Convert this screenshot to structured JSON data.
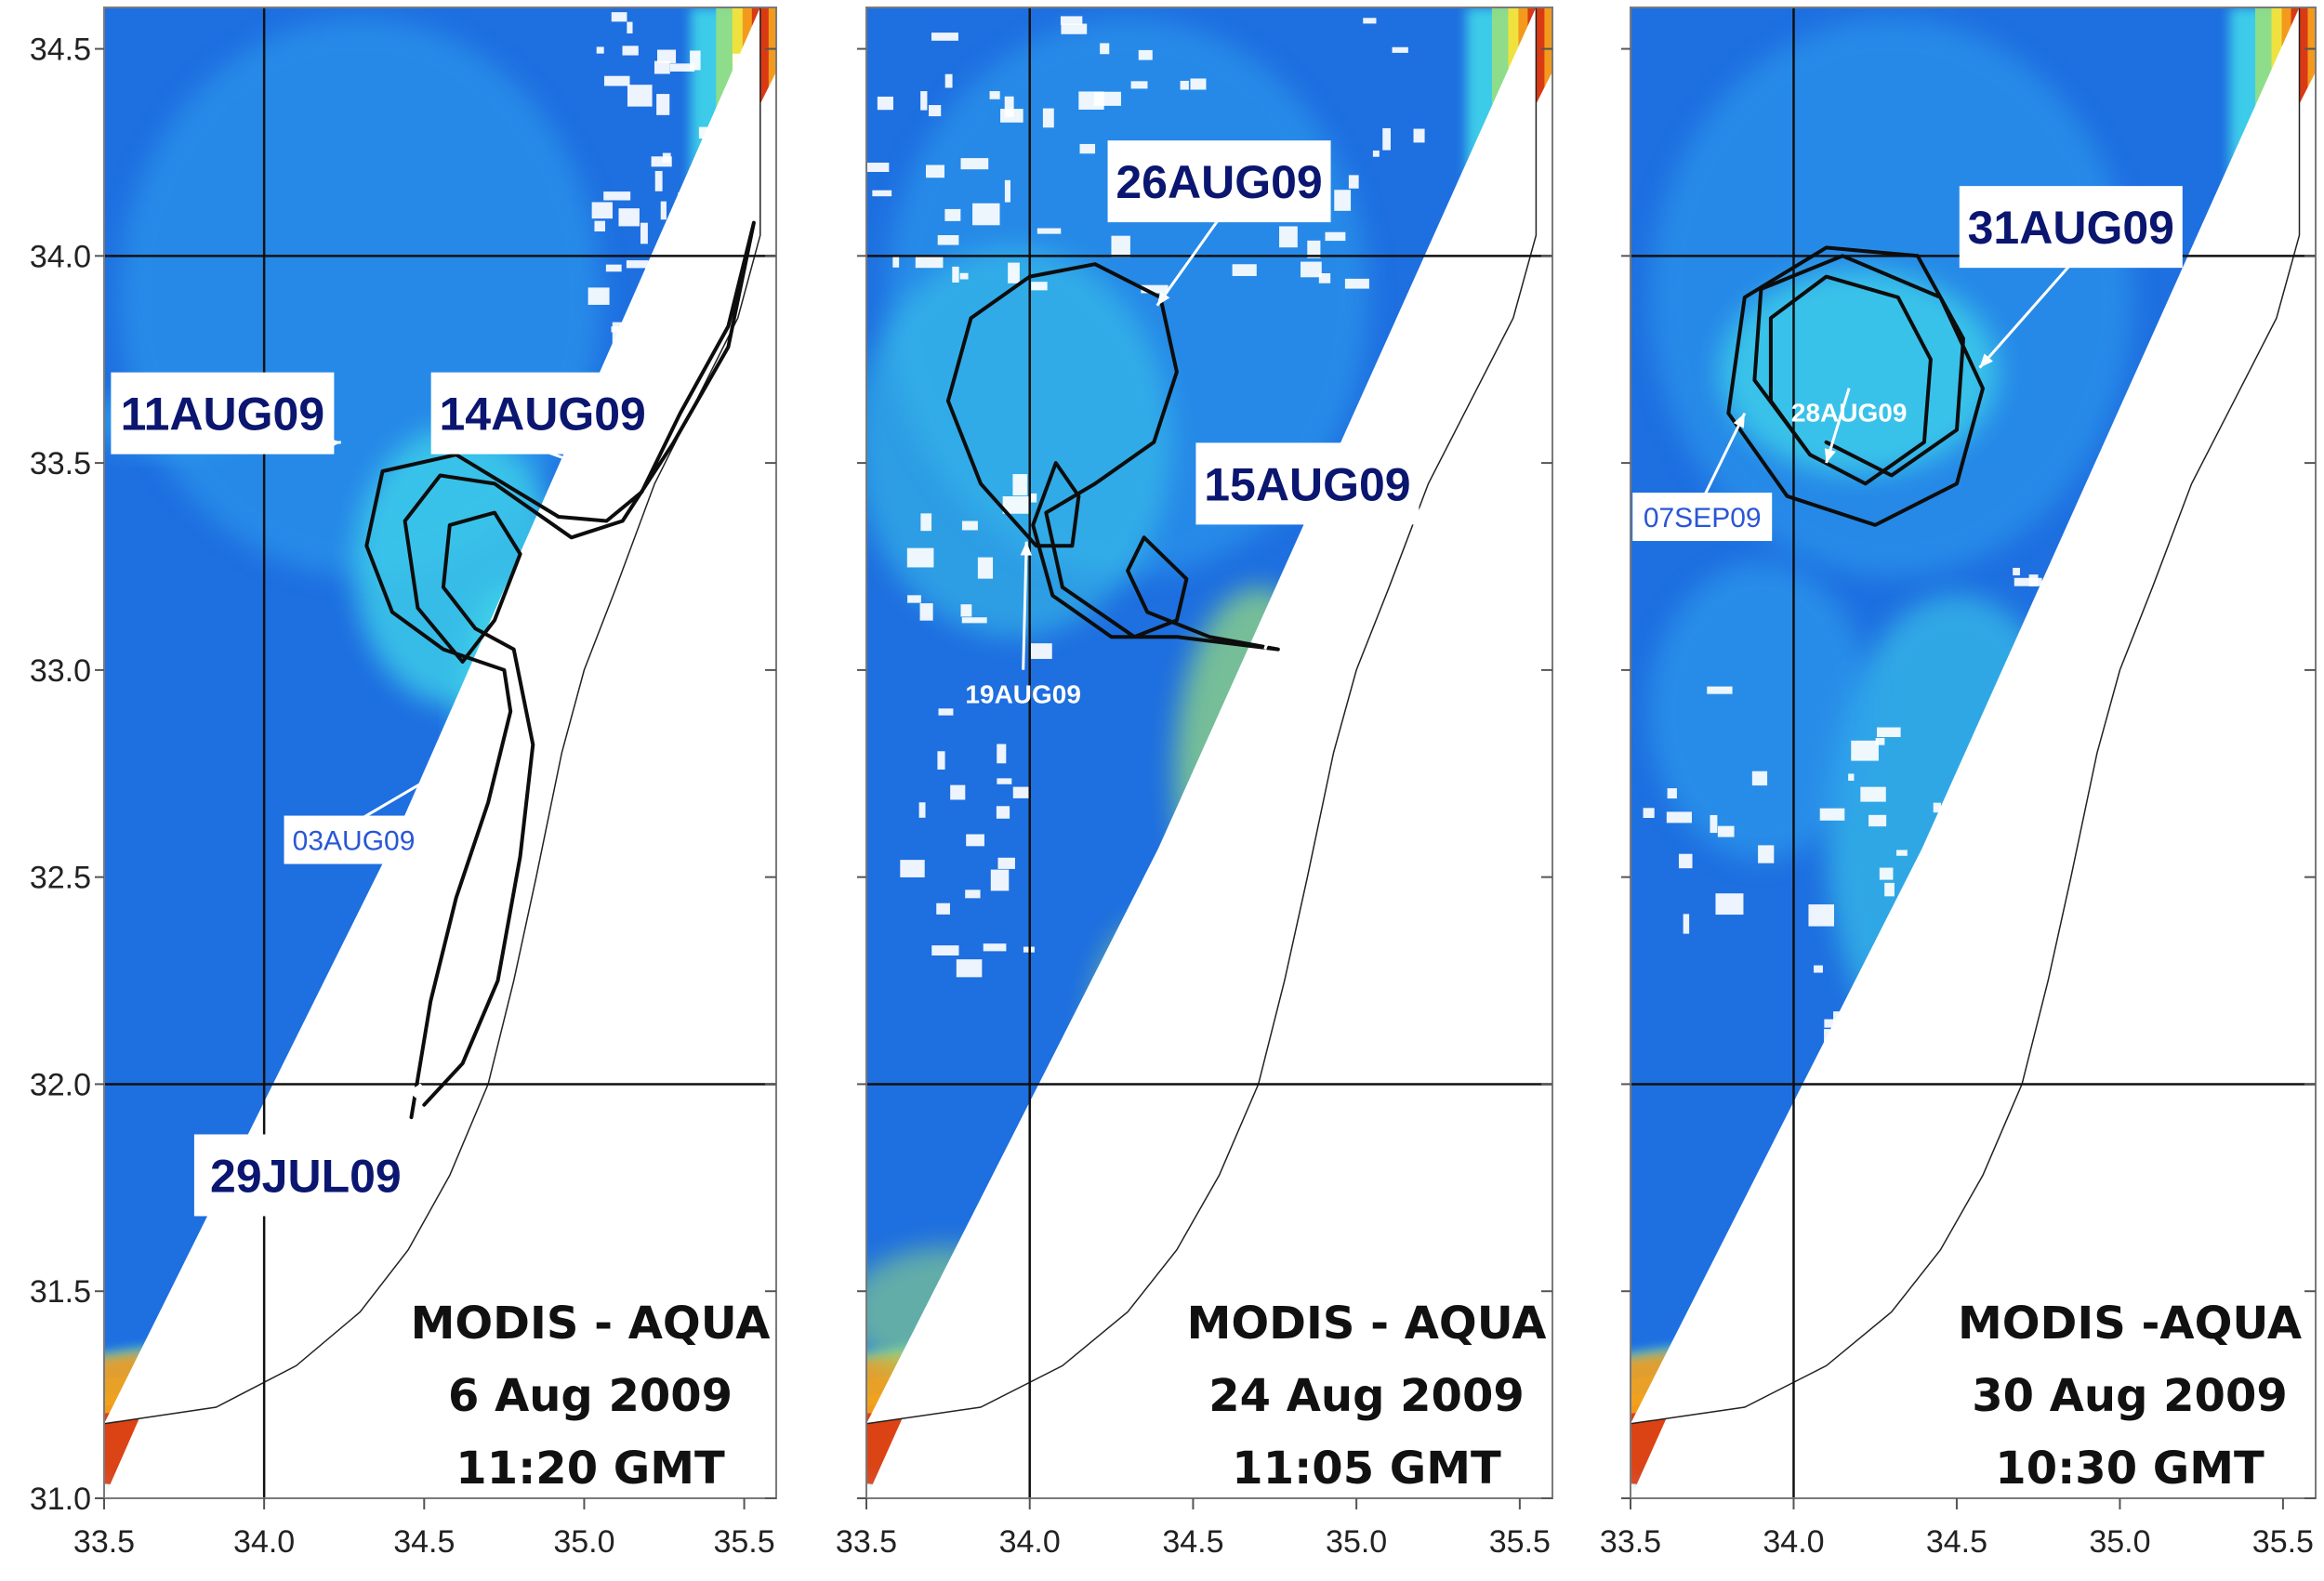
{
  "axes": {
    "x_ticks": [
      "33.5",
      "34.0",
      "34.5",
      "35.0",
      "35.5"
    ],
    "y_ticks": [
      "34.5",
      "34.0",
      "33.5",
      "33.0",
      "32.5",
      "32.0",
      "31.5",
      "31.0"
    ],
    "xlim": [
      33.5,
      35.6
    ],
    "ylim": [
      31.0,
      34.6
    ],
    "grid_lon": 34.0,
    "grid_lats": [
      34.0,
      32.0
    ]
  },
  "colors": {
    "ocean": "#1e6fe0",
    "ocean_light": "#2fa0ee",
    "plume_cyan": "#3fd6ea",
    "plume_green": "#9be07a",
    "coast_yellow": "#f4e13a",
    "coast_orange": "#f39a1d",
    "coast_red": "#d93a14",
    "label_text": "#0b1670",
    "small_label_blue": "#2a56d6"
  },
  "panels": [
    {
      "id": "p1",
      "caption": [
        "MODIS - AQUA",
        "6 Aug 2009",
        "11:20 GMT"
      ],
      "labels": [
        {
          "text": "11AUG09",
          "style": "big",
          "lon": 33.87,
          "lat": 33.62,
          "arrow_to": [
            34.24,
            33.55
          ]
        },
        {
          "text": "14AUG09",
          "style": "big",
          "lon": 34.87,
          "lat": 33.62,
          "arrow_to": [
            35.16,
            33.45
          ]
        },
        {
          "text": "03AUG09",
          "style": "small-blue",
          "lon": 34.28,
          "lat": 32.59,
          "arrow_to": [
            34.72,
            32.83
          ]
        },
        {
          "text": "29JUL09",
          "style": "big",
          "lon": 34.13,
          "lat": 31.78,
          "arrow_to": [
            34.49,
            32.0
          ]
        }
      ],
      "track": [
        [
          34.46,
          31.92
        ],
        [
          34.52,
          32.2
        ],
        [
          34.6,
          32.45
        ],
        [
          34.7,
          32.68
        ],
        [
          34.77,
          32.9
        ],
        [
          34.75,
          33.0
        ],
        [
          34.56,
          33.05
        ],
        [
          34.4,
          33.14
        ],
        [
          34.32,
          33.3
        ],
        [
          34.37,
          33.48
        ],
        [
          34.6,
          33.52
        ],
        [
          34.92,
          33.37
        ],
        [
          35.07,
          33.36
        ],
        [
          35.18,
          33.43
        ],
        [
          35.3,
          33.62
        ],
        [
          35.45,
          33.83
        ],
        [
          35.53,
          34.08
        ],
        [
          35.45,
          33.78
        ],
        [
          35.28,
          33.55
        ],
        [
          35.12,
          33.36
        ],
        [
          34.96,
          33.32
        ],
        [
          34.72,
          33.45
        ],
        [
          34.55,
          33.47
        ],
        [
          34.44,
          33.36
        ],
        [
          34.48,
          33.15
        ],
        [
          34.62,
          33.02
        ],
        [
          34.72,
          33.12
        ],
        [
          34.8,
          33.28
        ],
        [
          34.72,
          33.38
        ],
        [
          34.58,
          33.35
        ],
        [
          34.56,
          33.2
        ],
        [
          34.66,
          33.1
        ],
        [
          34.78,
          33.05
        ],
        [
          34.84,
          32.82
        ],
        [
          34.8,
          32.55
        ],
        [
          34.73,
          32.25
        ],
        [
          34.62,
          32.05
        ],
        [
          34.5,
          31.95
        ]
      ]
    },
    {
      "id": "p2",
      "caption": [
        "MODIS - AQUA",
        "24 Aug 2009",
        "11:05 GMT"
      ],
      "labels": [
        {
          "text": "26AUG09",
          "style": "big",
          "lon": 34.58,
          "lat": 34.18,
          "arrow_to": [
            34.39,
            33.88
          ]
        },
        {
          "text": "15AUG09",
          "style": "big",
          "lon": 34.85,
          "lat": 33.45,
          "arrow_to": [
            34.72,
            33.05
          ]
        },
        {
          "text": "19AUG09",
          "style": "small-white",
          "lon": 33.98,
          "lat": 32.96,
          "arrow_to": [
            33.99,
            33.31
          ]
        }
      ],
      "track": [
        [
          34.76,
          33.05
        ],
        [
          34.45,
          33.08
        ],
        [
          34.25,
          33.08
        ],
        [
          34.07,
          33.18
        ],
        [
          34.01,
          33.35
        ],
        [
          34.08,
          33.5
        ],
        [
          34.15,
          33.42
        ],
        [
          34.13,
          33.3
        ],
        [
          34.02,
          33.3
        ],
        [
          33.85,
          33.45
        ],
        [
          33.75,
          33.65
        ],
        [
          33.82,
          33.85
        ],
        [
          34.0,
          33.95
        ],
        [
          34.2,
          33.98
        ],
        [
          34.4,
          33.9
        ],
        [
          34.45,
          33.72
        ],
        [
          34.38,
          33.55
        ],
        [
          34.2,
          33.45
        ],
        [
          34.05,
          33.38
        ],
        [
          34.1,
          33.2
        ],
        [
          34.32,
          33.08
        ],
        [
          34.45,
          33.12
        ],
        [
          34.48,
          33.22
        ],
        [
          34.35,
          33.32
        ],
        [
          34.3,
          33.24
        ],
        [
          34.36,
          33.14
        ],
        [
          34.55,
          33.08
        ],
        [
          34.76,
          33.05
        ]
      ]
    },
    {
      "id": "p3",
      "caption": [
        "MODIS -AQUA",
        "30 Aug 2009",
        "10:30 GMT"
      ],
      "labels": [
        {
          "text": "31AUG09",
          "style": "big",
          "lon": 34.85,
          "lat": 34.07,
          "arrow_to": [
            34.57,
            33.73
          ]
        },
        {
          "text": "28AUG09",
          "style": "small-white",
          "lon": 34.17,
          "lat": 33.64,
          "arrow_to": [
            34.1,
            33.5
          ]
        },
        {
          "text": "07SEP09",
          "style": "small-blue",
          "lon": 33.72,
          "lat": 33.37,
          "arrow_to": [
            33.85,
            33.62
          ]
        }
      ],
      "track": [
        [
          34.05,
          33.52
        ],
        [
          33.93,
          33.65
        ],
        [
          33.93,
          33.85
        ],
        [
          34.1,
          33.95
        ],
        [
          34.32,
          33.9
        ],
        [
          34.42,
          33.75
        ],
        [
          34.4,
          33.55
        ],
        [
          34.22,
          33.45
        ],
        [
          34.05,
          33.52
        ],
        [
          33.88,
          33.7
        ],
        [
          33.9,
          33.92
        ],
        [
          34.15,
          34.0
        ],
        [
          34.45,
          33.9
        ],
        [
          34.58,
          33.68
        ],
        [
          34.5,
          33.45
        ],
        [
          34.25,
          33.35
        ],
        [
          33.98,
          33.42
        ],
        [
          33.8,
          33.62
        ],
        [
          33.85,
          33.9
        ],
        [
          34.1,
          34.02
        ],
        [
          34.38,
          34.0
        ],
        [
          34.52,
          33.8
        ],
        [
          34.5,
          33.58
        ],
        [
          34.3,
          33.47
        ],
        [
          34.1,
          33.55
        ]
      ]
    }
  ]
}
